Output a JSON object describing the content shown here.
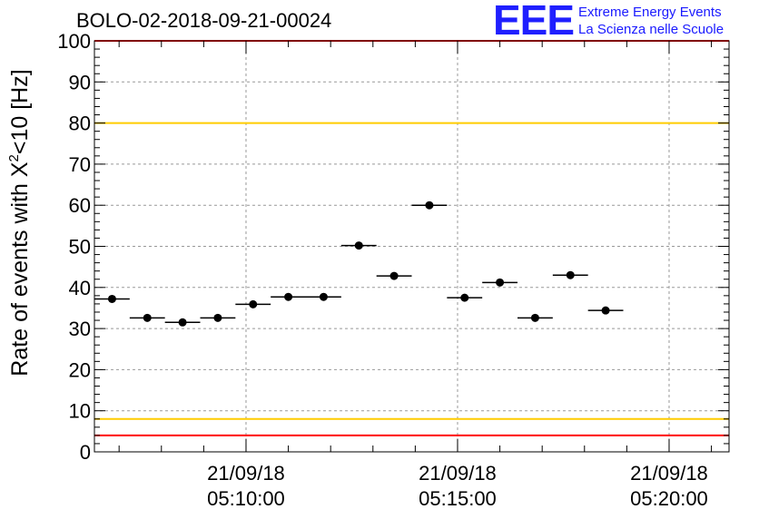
{
  "page": {
    "title": "BOLO-02-2018-09-21-00024",
    "logo": {
      "mark": "EEE",
      "line1": "Extreme Energy Events",
      "line2": "La Scienza nelle Scuole",
      "color": "#1f1fff"
    }
  },
  "chart_data": {
    "type": "scatter",
    "title": "BOLO-02-2018-09-21-00024",
    "ylabel_prefix": "Rate of events with X",
    "ylabel_sup": "2",
    "ylabel_suffix": "<10 [Hz]",
    "xlabel": "",
    "ylim": [
      0,
      100
    ],
    "yticks": [
      0,
      10,
      20,
      30,
      40,
      50,
      60,
      70,
      80,
      90,
      100
    ],
    "x_time_range": [
      "2018-09-21 05:06:25",
      "2018-09-21 05:21:25"
    ],
    "xticks": [
      {
        "time": "05:10:00",
        "date": "21/09/18"
      },
      {
        "time": "05:15:00",
        "date": "21/09/18"
      },
      {
        "time": "05:20:00",
        "date": "21/09/18"
      }
    ],
    "bin_width_seconds": 50,
    "points": [
      {
        "time": "05:06:50",
        "y": 37.2
      },
      {
        "time": "05:07:40",
        "y": 32.6
      },
      {
        "time": "05:08:30",
        "y": 31.5
      },
      {
        "time": "05:09:20",
        "y": 32.6
      },
      {
        "time": "05:10:10",
        "y": 35.9
      },
      {
        "time": "05:11:00",
        "y": 37.7
      },
      {
        "time": "05:11:50",
        "y": 37.7
      },
      {
        "time": "05:12:40",
        "y": 50.2
      },
      {
        "time": "05:13:30",
        "y": 42.8
      },
      {
        "time": "05:14:20",
        "y": 60.0
      },
      {
        "time": "05:15:10",
        "y": 37.5
      },
      {
        "time": "05:16:00",
        "y": 41.2
      },
      {
        "time": "05:16:50",
        "y": 32.6
      },
      {
        "time": "05:17:40",
        "y": 43.0
      },
      {
        "time": "05:18:30",
        "y": 34.4
      }
    ],
    "reference_lines": [
      {
        "y": 100,
        "color": "#ff0000"
      },
      {
        "y": 80,
        "color": "#ffcc00"
      },
      {
        "y": 8,
        "color": "#ffcc00"
      },
      {
        "y": 4,
        "color": "#ff0000"
      }
    ],
    "grid": true,
    "colors": {
      "marker": "#000000",
      "grid": "#999999"
    }
  }
}
